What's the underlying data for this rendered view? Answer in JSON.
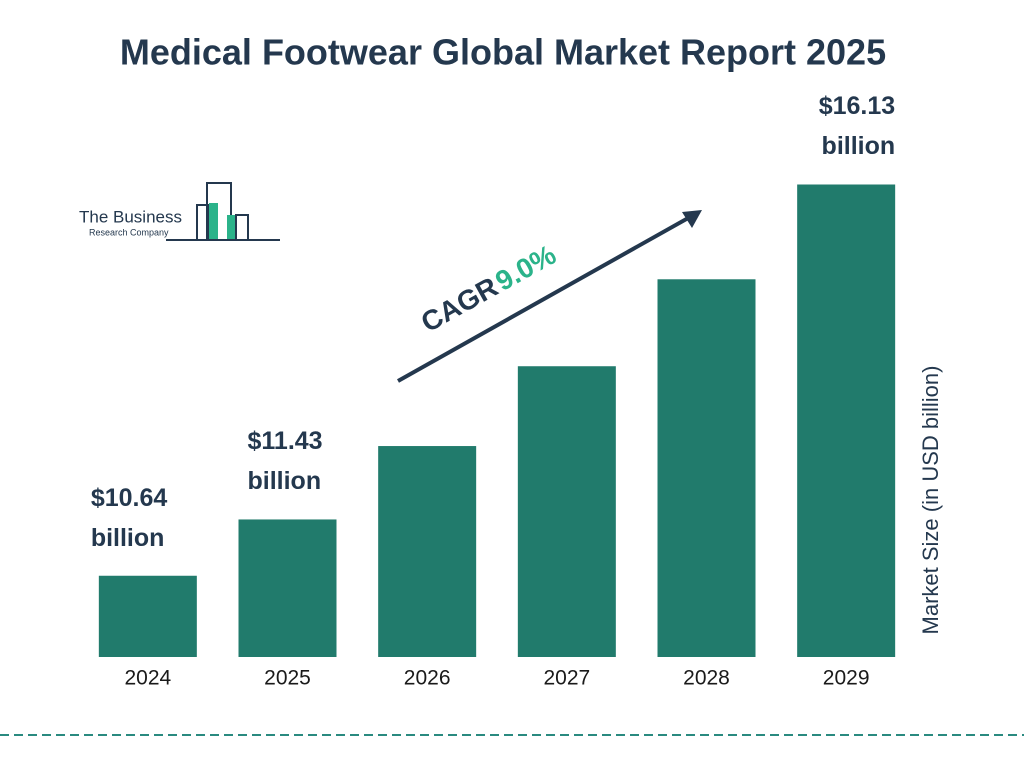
{
  "chart_data": {
    "type": "bar",
    "title": "Medical Footwear Global Market Report 2025",
    "y_label": "Market Size (in USD billion)",
    "categories": [
      "2024",
      "2025",
      "2026",
      "2027",
      "2028",
      "2029"
    ],
    "values": [
      10.64,
      11.43,
      12.46,
      13.58,
      14.8,
      16.13
    ],
    "value_labels": [
      "$10.64 billion",
      "$11.43 billion",
      null,
      null,
      null,
      "$16.13 billion"
    ],
    "color": "#217b6c",
    "ylim": [
      9.5,
      16.6
    ],
    "annotation": {
      "label": "CAGR",
      "value": "9.0%"
    },
    "logo": {
      "line1": "The Business",
      "line2": "Research Company"
    }
  }
}
